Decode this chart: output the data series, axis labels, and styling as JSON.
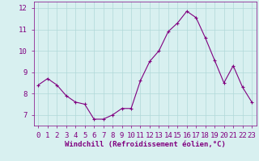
{
  "x": [
    0,
    1,
    2,
    3,
    4,
    5,
    6,
    7,
    8,
    9,
    10,
    11,
    12,
    13,
    14,
    15,
    16,
    17,
    18,
    19,
    20,
    21,
    22,
    23
  ],
  "y": [
    8.4,
    8.7,
    8.4,
    7.9,
    7.6,
    7.5,
    6.8,
    6.8,
    7.0,
    7.3,
    7.3,
    8.6,
    9.5,
    10.0,
    10.9,
    11.3,
    11.85,
    11.55,
    10.6,
    9.55,
    8.5,
    9.3,
    8.3,
    7.6
  ],
  "line_color": "#800080",
  "marker": "+",
  "marker_size": 3,
  "bg_color": "#d8f0f0",
  "grid_color": "#b0d8d8",
  "axis_color": "#800080",
  "tick_color": "#800080",
  "xlabel": "Windchill (Refroidissement éolien,°C)",
  "ylim": [
    6.5,
    12.3
  ],
  "xlim": [
    -0.5,
    23.5
  ],
  "yticks": [
    7,
    8,
    9,
    10,
    11,
    12
  ],
  "xticks": [
    0,
    1,
    2,
    3,
    4,
    5,
    6,
    7,
    8,
    9,
    10,
    11,
    12,
    13,
    14,
    15,
    16,
    17,
    18,
    19,
    20,
    21,
    22,
    23
  ],
  "font_size_label": 6.5,
  "font_size_tick": 6.5
}
